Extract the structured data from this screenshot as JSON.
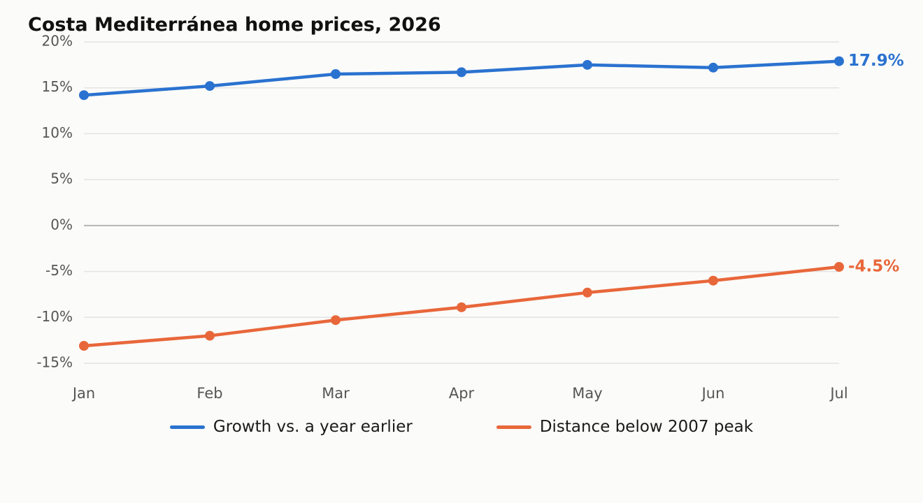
{
  "chart_data": {
    "type": "line",
    "title": "Costa Mediterránea home prices, 2026",
    "categories": [
      "Jan",
      "Feb",
      "Mar",
      "Apr",
      "May",
      "Jun",
      "Jul"
    ],
    "ylim": [
      -16.5,
      20
    ],
    "yticks": [
      20,
      15,
      10,
      5,
      0,
      -5,
      -10,
      -15
    ],
    "ytick_labels": [
      "20%",
      "15%",
      "10%",
      "5%",
      "0%",
      "-5%",
      "-10%",
      "-15%"
    ],
    "grid": true,
    "legend_position": "bottom-center",
    "series": [
      {
        "name": "Growth vs. a year earlier",
        "color": "#2a72d0",
        "values": [
          14.2,
          15.2,
          16.5,
          16.7,
          17.5,
          17.2,
          17.9
        ],
        "end_label": "17.9%"
      },
      {
        "name": "Distance below 2007 peak",
        "color": "#e8673a",
        "values": [
          -13.1,
          -12.0,
          -10.3,
          -8.9,
          -7.3,
          -6.0,
          -4.5
        ],
        "end_label": "-4.5%"
      }
    ]
  }
}
